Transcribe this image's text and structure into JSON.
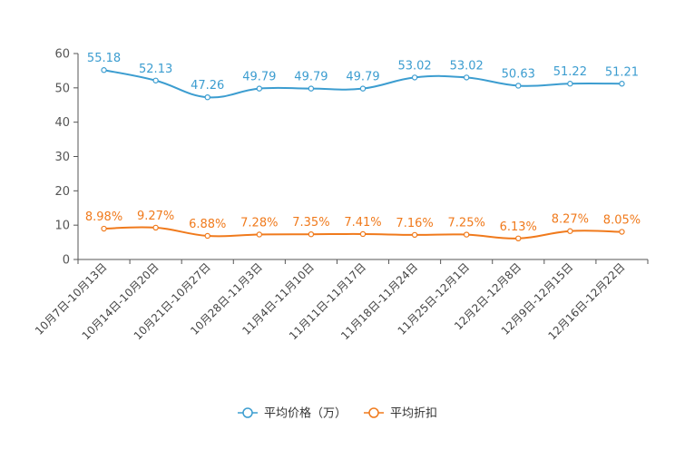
{
  "chart_data": {
    "type": "line",
    "title": "",
    "xlabel": "",
    "ylabel": "",
    "ylim": [
      0,
      60
    ],
    "yticks": [
      0,
      10,
      20,
      30,
      40,
      50,
      60
    ],
    "grid": false,
    "legend_position": "bottom",
    "categories": [
      "10月7日-10月13日",
      "10月14日-10月20日",
      "10月21日-10月27日",
      "10月28日-11月3日",
      "11月4日-11月10日",
      "11月11日-11月17日",
      "11月18日-11月24日",
      "11月25日-12月1日",
      "12月2日-12月8日",
      "12月9日-12月15日",
      "12月16日-12月22日"
    ],
    "series": [
      {
        "name": "平均价格（万）",
        "color": "#3c9dd0",
        "values": [
          55.18,
          52.13,
          47.26,
          49.79,
          49.79,
          49.79,
          53.02,
          53.02,
          50.63,
          51.22,
          51.21
        ],
        "labels": [
          "55.18",
          "52.13",
          "47.26",
          "49.79",
          "49.79",
          "49.79",
          "53.02",
          "53.02",
          "50.63",
          "51.22",
          "51.21"
        ]
      },
      {
        "name": "平均折扣",
        "color": "#f07a1c",
        "values": [
          8.98,
          9.27,
          6.88,
          7.28,
          7.35,
          7.41,
          7.16,
          7.25,
          6.13,
          8.27,
          8.05
        ],
        "labels": [
          "8.98%",
          "9.27%",
          "6.88%",
          "7.28%",
          "7.35%",
          "7.41%",
          "7.16%",
          "7.25%",
          "6.13%",
          "8.27%",
          "8.05%"
        ]
      }
    ]
  }
}
